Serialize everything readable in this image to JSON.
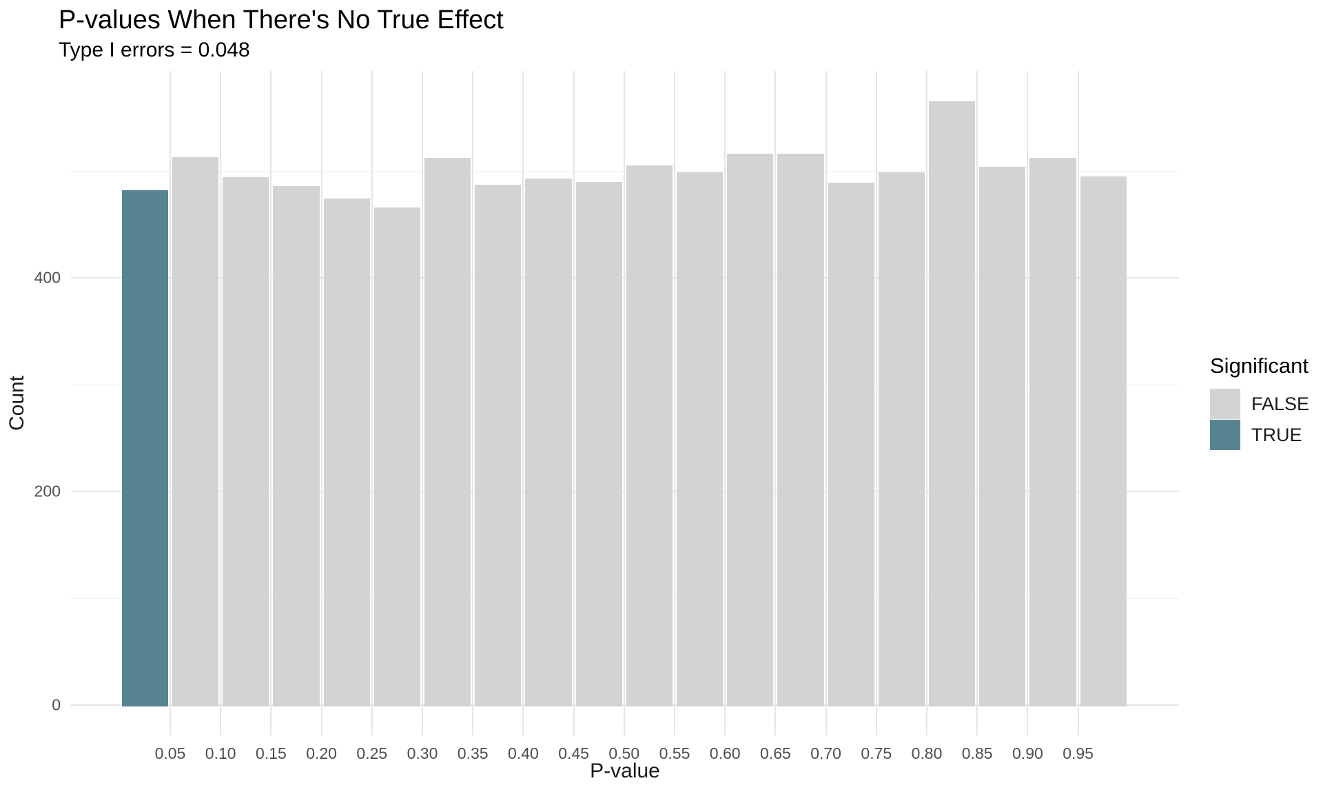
{
  "chart_data": {
    "type": "bar",
    "subtype": "histogram",
    "title": "P-values When There's No True Effect",
    "subtitle": "Type I errors = 0.048",
    "xlabel": "P-value",
    "ylabel": "Count",
    "bin_width": 0.05,
    "bins": [
      {
        "x0": 0.0,
        "x1": 0.05,
        "count": 482,
        "significant": true
      },
      {
        "x0": 0.05,
        "x1": 0.1,
        "count": 513,
        "significant": false
      },
      {
        "x0": 0.1,
        "x1": 0.15,
        "count": 494,
        "significant": false
      },
      {
        "x0": 0.15,
        "x1": 0.2,
        "count": 486,
        "significant": false
      },
      {
        "x0": 0.2,
        "x1": 0.25,
        "count": 474,
        "significant": false
      },
      {
        "x0": 0.25,
        "x1": 0.3,
        "count": 466,
        "significant": false
      },
      {
        "x0": 0.3,
        "x1": 0.35,
        "count": 512,
        "significant": false
      },
      {
        "x0": 0.35,
        "x1": 0.4,
        "count": 487,
        "significant": false
      },
      {
        "x0": 0.4,
        "x1": 0.45,
        "count": 493,
        "significant": false
      },
      {
        "x0": 0.45,
        "x1": 0.5,
        "count": 490,
        "significant": false
      },
      {
        "x0": 0.5,
        "x1": 0.55,
        "count": 505,
        "significant": false
      },
      {
        "x0": 0.55,
        "x1": 0.6,
        "count": 499,
        "significant": false
      },
      {
        "x0": 0.6,
        "x1": 0.65,
        "count": 516,
        "significant": false
      },
      {
        "x0": 0.65,
        "x1": 0.7,
        "count": 516,
        "significant": false
      },
      {
        "x0": 0.7,
        "x1": 0.75,
        "count": 489,
        "significant": false
      },
      {
        "x0": 0.75,
        "x1": 0.8,
        "count": 499,
        "significant": false
      },
      {
        "x0": 0.8,
        "x1": 0.85,
        "count": 565,
        "significant": false
      },
      {
        "x0": 0.85,
        "x1": 0.9,
        "count": 504,
        "significant": false
      },
      {
        "x0": 0.9,
        "x1": 0.95,
        "count": 512,
        "significant": false
      },
      {
        "x0": 0.95,
        "x1": 1.0,
        "count": 495,
        "significant": false
      }
    ],
    "x_tick_labels": [
      "0.05",
      "0.10",
      "0.15",
      "0.20",
      "0.25",
      "0.30",
      "0.35",
      "0.40",
      "0.45",
      "0.50",
      "0.55",
      "0.60",
      "0.65",
      "0.70",
      "0.75",
      "0.80",
      "0.85",
      "0.90",
      "0.95"
    ],
    "y_ticks": [
      {
        "label": "0",
        "value": 0
      },
      {
        "label": "200",
        "value": 200
      },
      {
        "label": "400",
        "value": 400
      }
    ],
    "y_minor_gridlines": [
      100,
      300,
      500
    ],
    "xlim": [
      0,
      1
    ],
    "ylim": [
      0,
      594
    ],
    "grid": true,
    "legend": {
      "title": "Significant",
      "position": "right",
      "entries": [
        {
          "label": "FALSE",
          "color": "#d3d3d3"
        },
        {
          "label": "TRUE",
          "color": "#578390"
        }
      ]
    },
    "colors": {
      "false_fill": "#d3d3d3",
      "true_fill": "#578390",
      "grid_major": "#e5e5e5",
      "grid_minor": "#f0f0f0",
      "tick_text": "#4d4d4d",
      "title_text": "#000000"
    }
  }
}
